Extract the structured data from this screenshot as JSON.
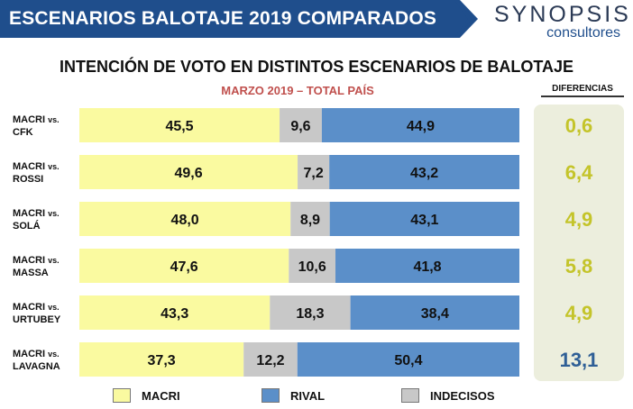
{
  "header": {
    "title": "ESCENARIOS BALOTAJE 2019 COMPARADOS",
    "brand_name": "SYNOPSIS",
    "brand_sub": "consultores"
  },
  "colors": {
    "header_bg": "#1f4e8c",
    "macri": "#fafaa0",
    "indecisos": "#c8c8c8",
    "rival": "#5b8fc9",
    "diff_yellow": "#c4c42a",
    "diff_blue": "#2f5f96",
    "subtitle": "#c0504d"
  },
  "chart_data": {
    "type": "bar",
    "orientation": "horizontal",
    "stacked": true,
    "title": "INTENCIÓN DE VOTO EN DISTINTOS ESCENARIOS DE BALOTAJE",
    "subtitle": "MARZO 2019 – TOTAL PAÍS",
    "categories": [
      {
        "line1": "MACRI",
        "vs": "vs.",
        "line2": "CFK"
      },
      {
        "line1": "MACRI",
        "vs": "vs.",
        "line2": "ROSSI"
      },
      {
        "line1": "MACRI",
        "vs": "vs.",
        "line2": "SOLÁ"
      },
      {
        "line1": "MACRI",
        "vs": "vs.",
        "line2": "MASSA"
      },
      {
        "line1": "MACRI",
        "vs": "vs.",
        "line2": "URTUBEY"
      },
      {
        "line1": "MACRI",
        "vs": "vs.",
        "line2": "LAVAGNA"
      }
    ],
    "series": [
      {
        "name": "MACRI",
        "values": [
          "45,5",
          "49,6",
          "48,0",
          "47,6",
          "43,3",
          "37,3"
        ]
      },
      {
        "name": "INDECISOS",
        "values": [
          "9,6",
          "7,2",
          "8,9",
          "10,6",
          "18,3",
          "12,2"
        ]
      },
      {
        "name": "RIVAL",
        "values": [
          "44,9",
          "43,2",
          "43,1",
          "41,8",
          "38,4",
          "50,4"
        ]
      }
    ],
    "differences": {
      "label": "DIFERENCIAS",
      "values": [
        "0,6",
        "6,4",
        "4,9",
        "5,8",
        "4,9",
        "13,1"
      ],
      "favored": [
        "MACRI",
        "MACRI",
        "MACRI",
        "MACRI",
        "MACRI",
        "RIVAL"
      ]
    },
    "xlim": [
      0,
      100
    ],
    "legend": {
      "position": "bottom",
      "items": [
        {
          "name": "MACRI",
          "color": "#fafaa0"
        },
        {
          "name": "RIVAL",
          "color": "#5b8fc9"
        },
        {
          "name": "INDECISOS",
          "color": "#c8c8c8"
        }
      ]
    }
  }
}
